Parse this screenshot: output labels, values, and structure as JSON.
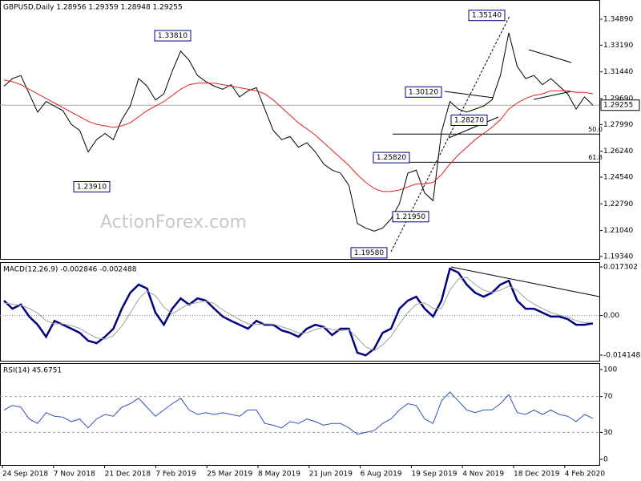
{
  "chart_data": [
    {
      "type": "line",
      "title": "GBPUSD,Daily  1.28956 1.29359 1.28948 1.29255",
      "watermark": "ActionForex.com",
      "ylim": [
        1.1918,
        1.3615
      ],
      "yticks": [
        {
          "value": 1.3489,
          "label": "1.34890"
        },
        {
          "value": 1.3319,
          "label": "1.33190"
        },
        {
          "value": 1.3144,
          "label": "1.31440"
        },
        {
          "value": 1.2969,
          "label": "1.29690"
        },
        {
          "value": 1.2799,
          "label": "1.27990"
        },
        {
          "value": 1.2624,
          "label": "1.26240"
        },
        {
          "value": 1.2454,
          "label": "1.24540"
        },
        {
          "value": 1.2279,
          "label": "1.22790"
        },
        {
          "value": 1.2104,
          "label": "1.21040"
        },
        {
          "value": 1.1934,
          "label": "1.19340"
        }
      ],
      "last_price": {
        "value": 1.29255,
        "label": "1.29255"
      },
      "annotations": [
        {
          "value": 1.3381,
          "label": "1.33810"
        },
        {
          "value": 1.2391,
          "label": "1.23910"
        },
        {
          "value": 1.3514,
          "label": "1.35140"
        },
        {
          "value": 1.3012,
          "label": "1.30120"
        },
        {
          "value": 1.2827,
          "label": "1.28270"
        },
        {
          "value": 1.2582,
          "label": "1.25820"
        },
        {
          "value": 1.2195,
          "label": "1.21950"
        },
        {
          "value": 1.1958,
          "label": "1.19580"
        }
      ],
      "fib_levels": [
        {
          "value": 1.2736,
          "label": "50.0"
        },
        {
          "value": 1.2552,
          "label": "61.8"
        }
      ],
      "series": [
        {
          "name": "Close",
          "color": "#000000",
          "values": [
            1.305,
            1.31,
            1.312,
            1.3,
            1.288,
            1.295,
            1.292,
            1.289,
            1.28,
            1.276,
            1.262,
            1.27,
            1.274,
            1.27,
            1.283,
            1.292,
            1.31,
            1.305,
            1.296,
            1.3,
            1.315,
            1.328,
            1.322,
            1.312,
            1.308,
            1.305,
            1.303,
            1.306,
            1.298,
            1.302,
            1.304,
            1.29,
            1.276,
            1.27,
            1.272,
            1.265,
            1.268,
            1.262,
            1.254,
            1.25,
            1.248,
            1.24,
            1.215,
            1.212,
            1.21,
            1.212,
            1.218,
            1.228,
            1.248,
            1.25,
            1.235,
            1.23,
            1.275,
            1.295,
            1.29,
            1.288,
            1.29,
            1.292,
            1.296,
            1.312,
            1.34,
            1.318,
            1.31,
            1.312,
            1.306,
            1.31,
            1.305,
            1.3,
            1.29,
            1.298,
            1.2925
          ]
        },
        {
          "name": "EMA",
          "color": "#e02020",
          "values": [
            1.309,
            1.308,
            1.306,
            1.303,
            1.3,
            1.297,
            1.294,
            1.291,
            1.288,
            1.285,
            1.282,
            1.28,
            1.279,
            1.278,
            1.279,
            1.281,
            1.285,
            1.289,
            1.292,
            1.295,
            1.299,
            1.303,
            1.306,
            1.307,
            1.307,
            1.307,
            1.306,
            1.305,
            1.304,
            1.303,
            1.302,
            1.3,
            1.296,
            1.291,
            1.286,
            1.281,
            1.277,
            1.273,
            1.268,
            1.263,
            1.258,
            1.253,
            1.247,
            1.242,
            1.238,
            1.236,
            1.236,
            1.237,
            1.239,
            1.241,
            1.241,
            1.242,
            1.247,
            1.254,
            1.26,
            1.265,
            1.27,
            1.274,
            1.278,
            1.283,
            1.29,
            1.294,
            1.297,
            1.299,
            1.3,
            1.302,
            1.302,
            1.302,
            1.301,
            1.301,
            1.3
          ]
        }
      ]
    },
    {
      "type": "line",
      "title": "MACD(12,26,9) -0.002846 -0.002488",
      "ylim": [
        -0.01615,
        0.01902
      ],
      "yticks": [
        0.017302,
        {
          "value": 0,
          "label": "0.00"
        },
        -0.014148
      ],
      "series": [
        {
          "name": "MACD",
          "color": "#000080",
          "values": [
            0.0053,
            0.0024,
            0.0039,
            -0.0004,
            -0.0033,
            -0.0076,
            -0.0019,
            -0.0033,
            -0.0047,
            -0.0062,
            -0.009,
            -0.0099,
            -0.0076,
            -0.0047,
            0.0024,
            0.0081,
            0.011,
            0.0096,
            0.001,
            -0.0033,
            0.0024,
            0.0061,
            0.0039,
            0.0061,
            0.0053,
            0.0024,
            -0.0004,
            -0.0019,
            -0.0033,
            -0.0047,
            -0.0019,
            -0.0033,
            -0.0033,
            -0.0053,
            -0.0062,
            -0.0076,
            -0.0047,
            -0.0033,
            -0.0041,
            -0.007,
            -0.0047,
            -0.0047,
            -0.0133,
            -0.0142,
            -0.0119,
            -0.0062,
            -0.0047,
            0.0024,
            0.0053,
            0.0067,
            0.0024,
            -0.0004,
            0.0053,
            0.0167,
            0.0153,
            0.011,
            0.0081,
            0.0067,
            0.0081,
            0.011,
            0.0124,
            0.0053,
            0.0024,
            0.0024,
            0.001,
            -0.0004,
            -0.0004,
            -0.0013,
            -0.0033,
            -0.0033,
            -0.0028
          ]
        },
        {
          "name": "Signal",
          "color": "#a0a0a0",
          "values": [
            0.0045,
            0.004,
            0.0036,
            0.0025,
            0.0008,
            -0.0018,
            -0.003,
            -0.003,
            -0.0036,
            -0.0046,
            -0.0064,
            -0.008,
            -0.0085,
            -0.0072,
            -0.0038,
            0.0008,
            0.0058,
            0.0088,
            0.007,
            0.003,
            0.0005,
            0.0025,
            0.004,
            0.0046,
            0.0052,
            0.0042,
            0.002,
            0.0002,
            -0.0015,
            -0.003,
            -0.0032,
            -0.003,
            -0.0031,
            -0.004,
            -0.005,
            -0.0062,
            -0.0062,
            -0.005,
            -0.0042,
            -0.005,
            -0.0055,
            -0.005,
            -0.008,
            -0.0112,
            -0.0126,
            -0.0105,
            -0.0075,
            -0.003,
            0.001,
            0.004,
            0.0045,
            0.0025,
            0.0025,
            0.009,
            0.013,
            0.0135,
            0.011,
            0.009,
            0.0082,
            0.009,
            0.0105,
            0.009,
            0.006,
            0.004,
            0.0025,
            0.001,
            0.0002,
            -0.0006,
            -0.0018,
            -0.0026,
            -0.0025
          ]
        }
      ]
    },
    {
      "type": "line",
      "title": "RSI(14) 45.6751",
      "ylim": [
        -6.25,
        107.1
      ],
      "yticks": [
        100,
        70,
        30,
        0
      ],
      "levels": [
        70,
        30
      ],
      "xtick_labels": [
        "24 Sep 2018",
        "7 Nov 2018",
        "21 Dec 2018",
        "7 Feb 2019",
        "25 Mar 2019",
        "8 May 2019",
        "21 Jun 2019",
        "6 Aug 2019",
        "19 Sep 2019",
        "4 Nov 2019",
        "18 Dec 2019",
        "4 Feb 2020"
      ],
      "series": [
        {
          "name": "RSI",
          "color": "#3050c0",
          "values": [
            55,
            60,
            58,
            45,
            40,
            52,
            48,
            47,
            42,
            45,
            35,
            45,
            50,
            48,
            58,
            62,
            68,
            58,
            48,
            55,
            62,
            68,
            55,
            50,
            52,
            50,
            52,
            50,
            48,
            55,
            55,
            40,
            38,
            35,
            42,
            40,
            45,
            42,
            38,
            40,
            40,
            35,
            28,
            30,
            32,
            40,
            45,
            55,
            62,
            60,
            45,
            40,
            65,
            75,
            65,
            55,
            52,
            55,
            55,
            62,
            72,
            52,
            50,
            55,
            50,
            55,
            50,
            48,
            42,
            50,
            45.6751
          ]
        }
      ]
    }
  ]
}
